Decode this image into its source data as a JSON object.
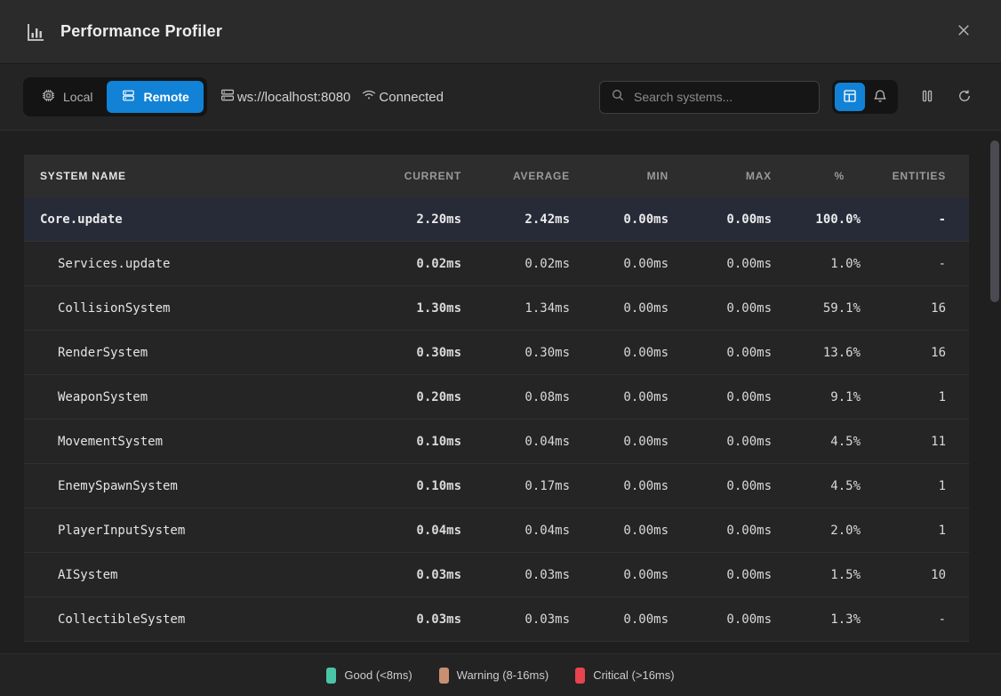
{
  "titlebar": {
    "title": "Performance Profiler"
  },
  "toolbar": {
    "local_label": "Local",
    "remote_label": "Remote",
    "ws_url": "ws://localhost:8080",
    "connected_label": "Connected",
    "search_placeholder": "Search systems...",
    "icons": [
      "cpu-icon",
      "server-icon",
      "wifi-icon",
      "search-icon",
      "table-view-icon",
      "bell-icon",
      "pause-icon",
      "refresh-icon"
    ]
  },
  "colors": {
    "accent": "#1182d6",
    "good": "#49c5a6",
    "warning": "#c98f72",
    "critical": "#e8434e"
  },
  "table": {
    "columns": [
      "SYSTEM NAME",
      "CURRENT",
      "AVERAGE",
      "MIN",
      "MAX",
      "%",
      "ENTITIES"
    ],
    "rows": [
      {
        "name": "Core.update",
        "depth": 0,
        "selected": true,
        "current": "2.20ms",
        "average": "2.42ms",
        "min": "0.00ms",
        "max": "0.00ms",
        "pct": "100.0%",
        "entities": "-"
      },
      {
        "name": "Services.update",
        "depth": 1,
        "selected": false,
        "current": "0.02ms",
        "average": "0.02ms",
        "min": "0.00ms",
        "max": "0.00ms",
        "pct": "1.0%",
        "entities": "-"
      },
      {
        "name": "CollisionSystem",
        "depth": 1,
        "selected": false,
        "current": "1.30ms",
        "average": "1.34ms",
        "min": "0.00ms",
        "max": "0.00ms",
        "pct": "59.1%",
        "entities": "16"
      },
      {
        "name": "RenderSystem",
        "depth": 1,
        "selected": false,
        "current": "0.30ms",
        "average": "0.30ms",
        "min": "0.00ms",
        "max": "0.00ms",
        "pct": "13.6%",
        "entities": "16"
      },
      {
        "name": "WeaponSystem",
        "depth": 1,
        "selected": false,
        "current": "0.20ms",
        "average": "0.08ms",
        "min": "0.00ms",
        "max": "0.00ms",
        "pct": "9.1%",
        "entities": "1"
      },
      {
        "name": "MovementSystem",
        "depth": 1,
        "selected": false,
        "current": "0.10ms",
        "average": "0.04ms",
        "min": "0.00ms",
        "max": "0.00ms",
        "pct": "4.5%",
        "entities": "11"
      },
      {
        "name": "EnemySpawnSystem",
        "depth": 1,
        "selected": false,
        "current": "0.10ms",
        "average": "0.17ms",
        "min": "0.00ms",
        "max": "0.00ms",
        "pct": "4.5%",
        "entities": "1"
      },
      {
        "name": "PlayerInputSystem",
        "depth": 1,
        "selected": false,
        "current": "0.04ms",
        "average": "0.04ms",
        "min": "0.00ms",
        "max": "0.00ms",
        "pct": "2.0%",
        "entities": "1"
      },
      {
        "name": "AISystem",
        "depth": 1,
        "selected": false,
        "current": "0.03ms",
        "average": "0.03ms",
        "min": "0.00ms",
        "max": "0.00ms",
        "pct": "1.5%",
        "entities": "10"
      },
      {
        "name": "CollectibleSystem",
        "depth": 1,
        "selected": false,
        "current": "0.03ms",
        "average": "0.03ms",
        "min": "0.00ms",
        "max": "0.00ms",
        "pct": "1.3%",
        "entities": "-"
      }
    ]
  },
  "legend": [
    {
      "label": "Good (<8ms)",
      "color": "#49c5a6"
    },
    {
      "label": "Warning (8-16ms)",
      "color": "#c98f72"
    },
    {
      "label": "Critical (>16ms)",
      "color": "#e8434e"
    }
  ]
}
